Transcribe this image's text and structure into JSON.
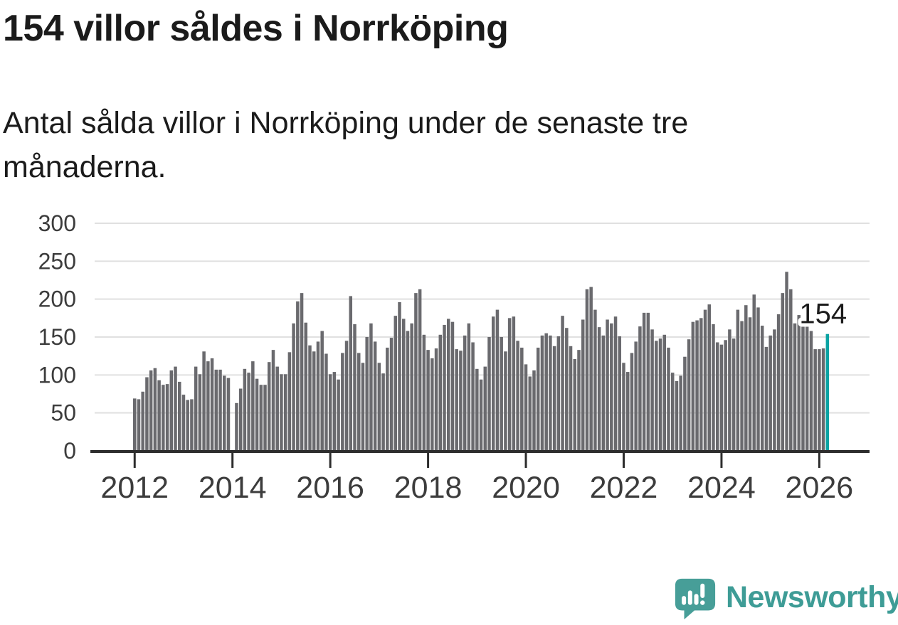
{
  "header": {
    "title": "154 villor såldes i Norrköping",
    "subtitle": "Antal sålda villor i Norrköping under de senaste tre månaderna."
  },
  "chart_data": {
    "type": "bar",
    "title": "154 villor såldes i Norrköping",
    "xlabel": "",
    "ylabel": "",
    "frequency": "monthly",
    "start_month": "2012-01",
    "end_month": "2026-03",
    "missing_months": [
      "2014-01"
    ],
    "values": [
      69,
      68,
      78,
      97,
      106,
      109,
      93,
      87,
      88,
      106,
      111,
      91,
      74,
      67,
      68,
      111,
      101,
      131,
      118,
      122,
      107,
      107,
      99,
      96,
      null,
      63,
      82,
      108,
      103,
      118,
      95,
      87,
      87,
      117,
      133,
      111,
      101,
      101,
      130,
      168,
      197,
      208,
      169,
      139,
      131,
      144,
      158,
      128,
      101,
      104,
      94,
      129,
      145,
      204,
      167,
      129,
      116,
      150,
      168,
      144,
      116,
      102,
      136,
      149,
      178,
      196,
      174,
      158,
      168,
      208,
      213,
      153,
      133,
      122,
      135,
      153,
      166,
      174,
      170,
      134,
      132,
      152,
      168,
      143,
      108,
      94,
      111,
      150,
      177,
      186,
      150,
      131,
      175,
      177,
      145,
      136,
      114,
      98,
      106,
      136,
      152,
      155,
      152,
      138,
      151,
      178,
      162,
      138,
      121,
      133,
      173,
      213,
      216,
      186,
      163,
      152,
      173,
      168,
      177,
      151,
      116,
      104,
      129,
      144,
      164,
      182,
      182,
      160,
      145,
      148,
      153,
      136,
      103,
      92,
      99,
      124,
      147,
      170,
      172,
      175,
      186,
      193,
      167,
      143,
      140,
      146,
      160,
      148,
      186,
      171,
      192,
      176,
      206,
      189,
      165,
      137,
      152,
      160,
      180,
      208,
      236,
      213,
      168,
      179,
      171,
      167,
      158,
      134,
      134,
      135,
      154
    ],
    "highlight": {
      "index": 170,
      "month": "2026-03",
      "value": 154,
      "label": "154",
      "color": "#0ba3a3"
    },
    "bar_color": "#6a6a6e",
    "y_ticks": [
      0,
      50,
      100,
      150,
      200,
      250,
      300
    ],
    "x_ticks": [
      2012,
      2014,
      2016,
      2018,
      2020,
      2022,
      2024,
      2026
    ],
    "ylim": [
      0,
      300
    ],
    "grid": true,
    "legend_position": "none",
    "colors": {
      "gridline": "#e0e0e0",
      "axis": "#2d2d2d",
      "tick_label": "#3c3c3c",
      "annotation_text": "#1b1b1b",
      "annotation_halo": "#ffffff"
    }
  },
  "footer": {
    "brand": "Newsworthy",
    "logo_icon": "speech-bubble-bar-chart-exclamation",
    "brand_color": "#3e9c96",
    "icon_color": "#479e98"
  }
}
